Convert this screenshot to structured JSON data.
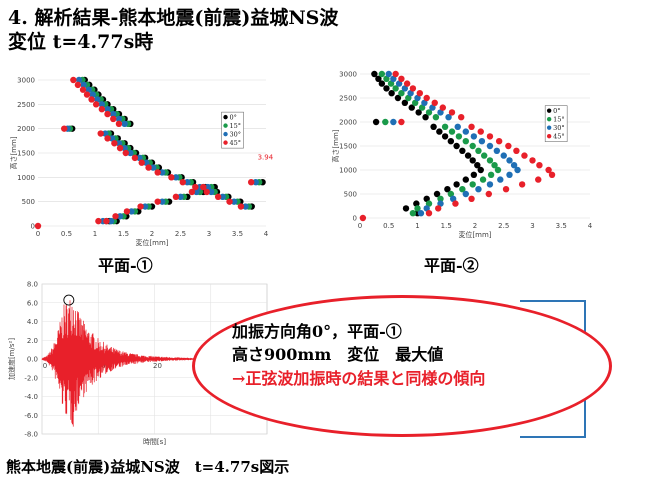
{
  "title_line1": "4. 解析結果-熊本地震(前震)益城NS波",
  "title_line2": "変位 t=4.77s時",
  "plane1_label": "平面-①",
  "plane2_label": "平面-②",
  "callout": {
    "line1": "加振方向角0°，平面-①",
    "line2": "高さ900mm　変位　最大値",
    "line3": "→正弦波加振時の結果と同様の傾向"
  },
  "bottom_caption": "熊本地震(前震)益城NS波　t=4.77s図示",
  "colors": {
    "s0": "#000000",
    "s15": "#1a9a4a",
    "s30": "#1f6fb5",
    "s45": "#e8202a",
    "wave": "#e8202a",
    "callout": "#e8202a",
    "box": "#2e75b6"
  },
  "chart_data": [
    {
      "type": "scatter",
      "name": "平面-①",
      "xlabel": "変位[mm]",
      "ylabel": "高さ[mm]",
      "xlim": [
        0,
        4
      ],
      "ylim": [
        0,
        3000
      ],
      "xticks": [
        0,
        0.5,
        1,
        1.5,
        2,
        2.5,
        3,
        3.5,
        4
      ],
      "yticks": [
        0,
        500,
        1000,
        1500,
        2000,
        2500,
        3000
      ],
      "annotation": {
        "text": "3.94",
        "x": 3.94,
        "y": 1000
      },
      "legend": [
        "0°",
        "15°",
        "30°",
        "45°"
      ],
      "series": [
        {
          "name": "0°",
          "x": [
            0.82,
            0.9,
            0.99,
            1.06,
            1.14,
            1.22,
            1.32,
            1.42,
            1.52,
            1.62,
            0.6,
            1.28,
            1.4,
            1.52,
            1.62,
            1.72,
            1.88,
            2.0,
            2.12,
            2.28,
            2.52,
            2.72,
            2.94,
            3.14,
            3.34,
            3.55,
            3.75,
            3.94,
            3.1,
            2.9,
            2.62,
            2.3,
            2.0,
            1.76,
            1.55,
            1.38,
            1.25
          ],
          "y": [
            3000,
            2900,
            2800,
            2700,
            2600,
            2500,
            2400,
            2300,
            2200,
            2100,
            2000,
            1900,
            1800,
            1700,
            1600,
            1500,
            1400,
            1300,
            1200,
            1100,
            1000,
            900,
            800,
            700,
            600,
            500,
            400,
            900,
            800,
            700,
            600,
            500,
            400,
            300,
            200,
            100,
            100
          ]
        },
        {
          "name": "15°",
          "x": [
            0.78,
            0.86,
            0.95,
            1.02,
            1.1,
            1.18,
            1.28,
            1.38,
            1.48,
            1.58,
            0.56,
            1.24,
            1.36,
            1.48,
            1.58,
            1.68,
            1.84,
            1.96,
            2.08,
            2.24,
            2.48,
            2.68,
            2.9,
            3.1,
            3.3,
            3.5,
            3.7,
            3.88,
            3.04,
            2.84,
            2.56,
            2.24,
            1.94,
            1.7,
            1.5,
            1.33,
            1.2
          ],
          "y": [
            3000,
            2900,
            2800,
            2700,
            2600,
            2500,
            2400,
            2300,
            2200,
            2100,
            2000,
            1900,
            1800,
            1700,
            1600,
            1500,
            1400,
            1300,
            1200,
            1100,
            1000,
            900,
            800,
            700,
            600,
            500,
            400,
            900,
            800,
            700,
            600,
            500,
            400,
            300,
            200,
            100,
            100
          ]
        },
        {
          "name": "30°",
          "x": [
            0.72,
            0.8,
            0.89,
            0.96,
            1.04,
            1.12,
            1.22,
            1.32,
            1.42,
            1.52,
            0.52,
            1.18,
            1.3,
            1.42,
            1.52,
            1.62,
            1.78,
            1.9,
            2.02,
            2.18,
            2.42,
            2.62,
            2.84,
            3.04,
            3.24,
            3.44,
            3.64,
            3.82,
            2.98,
            2.78,
            2.5,
            2.18,
            1.88,
            1.64,
            1.44,
            1.28,
            1.14
          ],
          "y": [
            3000,
            2900,
            2800,
            2700,
            2600,
            2500,
            2400,
            2300,
            2200,
            2100,
            2000,
            1900,
            1800,
            1700,
            1600,
            1500,
            1400,
            1300,
            1200,
            1100,
            1000,
            900,
            800,
            700,
            600,
            500,
            400,
            900,
            800,
            700,
            600,
            500,
            400,
            300,
            200,
            100,
            100
          ]
        },
        {
          "name": "45°",
          "x": [
            0.62,
            0.7,
            0.79,
            0.86,
            0.94,
            1.02,
            1.12,
            1.22,
            1.32,
            1.42,
            0.46,
            1.1,
            1.22,
            1.34,
            1.44,
            1.54,
            1.7,
            1.82,
            1.94,
            2.1,
            2.34,
            2.54,
            2.76,
            2.96,
            3.16,
            3.36,
            3.56,
            3.74,
            2.9,
            2.7,
            2.42,
            2.1,
            1.8,
            1.56,
            1.36,
            1.2,
            1.06,
            0
          ],
          "y": [
            3000,
            2900,
            2800,
            2700,
            2600,
            2500,
            2400,
            2300,
            2200,
            2100,
            2000,
            1900,
            1800,
            1700,
            1600,
            1500,
            1400,
            1300,
            1200,
            1100,
            1000,
            900,
            800,
            700,
            600,
            500,
            400,
            900,
            800,
            700,
            600,
            500,
            400,
            300,
            200,
            100,
            100,
            0
          ]
        }
      ]
    },
    {
      "type": "scatter",
      "name": "平面-②",
      "xlabel": "変位[mm]",
      "ylabel": "高さ[mm]",
      "xlim": [
        0,
        4
      ],
      "ylim": [
        0,
        3000
      ],
      "xticks": [
        0,
        0.5,
        1,
        1.5,
        2,
        2.5,
        3,
        3.5,
        4
      ],
      "yticks": [
        0,
        500,
        1000,
        1500,
        2000,
        2500,
        3000
      ],
      "legend": [
        "0°",
        "15°",
        "30°",
        "45°"
      ],
      "series": [
        {
          "name": "0°",
          "x": [
            0.25,
            0.32,
            0.38,
            0.46,
            0.55,
            0.66,
            0.78,
            0.9,
            1.02,
            1.14,
            0.28,
            1.28,
            1.38,
            1.48,
            1.58,
            1.68,
            1.78,
            1.88,
            1.96,
            2.04,
            2.1,
            1.98,
            1.84,
            1.68,
            1.52,
            1.34,
            1.16,
            0.98,
            0.8,
            1.0
          ],
          "y": [
            3000,
            2900,
            2800,
            2700,
            2600,
            2500,
            2400,
            2300,
            2200,
            2100,
            2000,
            1900,
            1800,
            1700,
            1600,
            1500,
            1400,
            1300,
            1200,
            1100,
            1000,
            900,
            800,
            700,
            600,
            500,
            400,
            300,
            200,
            100
          ]
        },
        {
          "name": "15°",
          "x": [
            0.38,
            0.46,
            0.54,
            0.62,
            0.72,
            0.84,
            0.96,
            1.08,
            1.2,
            1.32,
            0.44,
            1.48,
            1.6,
            1.72,
            1.84,
            1.96,
            2.06,
            2.16,
            2.26,
            2.34,
            2.4,
            2.28,
            2.14,
            1.96,
            1.78,
            1.58,
            1.4,
            1.2,
            1.0,
            0.92
          ],
          "y": [
            3000,
            2900,
            2800,
            2700,
            2600,
            2500,
            2400,
            2300,
            2200,
            2100,
            2000,
            1900,
            1800,
            1700,
            1600,
            1500,
            1400,
            1300,
            1200,
            1100,
            1000,
            900,
            800,
            700,
            600,
            500,
            400,
            300,
            200,
            100
          ]
        },
        {
          "name": "30°",
          "x": [
            0.5,
            0.58,
            0.68,
            0.78,
            0.88,
            1.0,
            1.12,
            1.26,
            1.4,
            1.54,
            0.58,
            1.7,
            1.84,
            1.98,
            2.12,
            2.26,
            2.38,
            2.5,
            2.6,
            2.68,
            2.74,
            2.6,
            2.44,
            2.26,
            2.06,
            1.84,
            1.62,
            1.4,
            1.16,
            1.06
          ],
          "y": [
            3000,
            2900,
            2800,
            2700,
            2600,
            2500,
            2400,
            2300,
            2200,
            2100,
            2000,
            1900,
            1800,
            1700,
            1600,
            1500,
            1400,
            1300,
            1200,
            1100,
            1000,
            900,
            800,
            700,
            600,
            500,
            400,
            300,
            200,
            100
          ]
        },
        {
          "name": "45°",
          "x": [
            0.62,
            0.72,
            0.82,
            0.92,
            1.04,
            1.16,
            1.3,
            1.44,
            1.6,
            1.76,
            0.72,
            1.94,
            2.1,
            2.26,
            2.42,
            2.58,
            2.72,
            2.86,
            3.0,
            3.12,
            3.28,
            3.34,
            3.1,
            2.82,
            2.54,
            2.24,
            1.94,
            1.66,
            1.36,
            1.2,
            0.05
          ],
          "y": [
            3000,
            2900,
            2800,
            2700,
            2600,
            2500,
            2400,
            2300,
            2200,
            2100,
            2000,
            1900,
            1800,
            1700,
            1600,
            1500,
            1400,
            1300,
            1200,
            1100,
            1000,
            900,
            800,
            700,
            600,
            500,
            400,
            300,
            200,
            100,
            0
          ]
        }
      ]
    },
    {
      "type": "line",
      "name": "熊本地震(前震)益城NS波",
      "xlabel": "時間[s]",
      "ylabel": "加速度[m/s²]",
      "xlim": [
        0,
        40
      ],
      "ylim": [
        -8.0,
        8.0
      ],
      "xticks": [
        0,
        10,
        20,
        30
      ],
      "yticks": [
        -8.0,
        -6.0,
        -4.0,
        -2.0,
        0.0,
        2.0,
        4.0,
        6.0,
        8.0
      ],
      "ytick_labels": [
        "-8.0",
        "-6.0",
        "-4.0",
        "-2.0",
        "0.0",
        "2.0",
        "4.0",
        "6.0",
        "8.0"
      ],
      "peak_marker": {
        "t": 4.77,
        "a": 6.5
      },
      "envelope": {
        "t": [
          0,
          1,
          2,
          3,
          3.5,
          4,
          4.77,
          5.5,
          6.5,
          8,
          10,
          12,
          14,
          16,
          18,
          20,
          25,
          30,
          35,
          40
        ],
        "amp": [
          0.1,
          0.4,
          1.5,
          3.5,
          5.0,
          6.0,
          6.5,
          7.5,
          5.0,
          3.5,
          2.2,
          1.4,
          0.9,
          0.6,
          0.4,
          0.3,
          0.15,
          0.08,
          0.05,
          0.03
        ]
      }
    }
  ]
}
